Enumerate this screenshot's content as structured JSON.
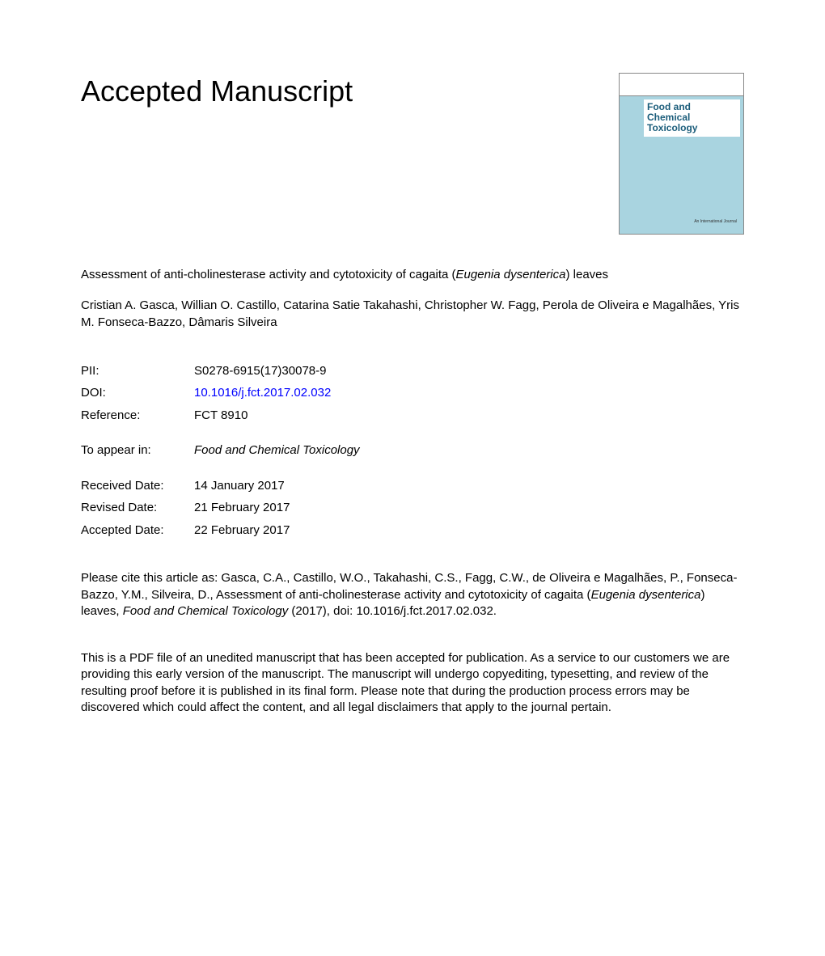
{
  "header": {
    "title": "Accepted Manuscript"
  },
  "journal_cover": {
    "journal_name_line1": "Food and",
    "journal_name_line2": "Chemical",
    "journal_name_line3": "Toxicology",
    "background_color": "#a9d4e0",
    "title_box_bg": "#ffffff",
    "title_text_color": "#1a5c7a",
    "bottom_label": "An International Journal"
  },
  "article": {
    "title_prefix": "Assessment of anti-cholinesterase activity and cytotoxicity of cagaita (",
    "title_italic": "Eugenia dysenterica",
    "title_suffix": ") leaves",
    "authors": "Cristian A. Gasca, Willian O. Castillo, Catarina Satie Takahashi, Christopher W. Fagg, Perola de Oliveira e Magalhães, Yris M. Fonseca-Bazzo, Dâmaris Silveira"
  },
  "meta": {
    "pii_label": "PII:",
    "pii_value": "S0278-6915(17)30078-9",
    "doi_label": "DOI:",
    "doi_value": "10.1016/j.fct.2017.02.032",
    "reference_label": "Reference:",
    "reference_value": "FCT 8910",
    "appear_label": "To appear in:",
    "appear_value": "Food and Chemical Toxicology",
    "received_label": "Received Date:",
    "received_value": "14 January 2017",
    "revised_label": "Revised Date:",
    "revised_value": "21 February 2017",
    "accepted_label": "Accepted Date:",
    "accepted_value": "22 February 2017"
  },
  "citation": {
    "prefix": "Please cite this article as: Gasca, C.A., Castillo, W.O., Takahashi, C.S., Fagg, C.W., de Oliveira e Magalhães, P., Fonseca-Bazzo, Y.M., Silveira, D., Assessment of anti-cholinesterase activity and cytotoxicity of cagaita (",
    "italic1": "Eugenia dysenterica",
    "middle": ") leaves, ",
    "italic2": "Food and Chemical Toxicology",
    "suffix": " (2017), doi: 10.1016/j.fct.2017.02.032."
  },
  "disclaimer": {
    "text": "This is a PDF file of an unedited manuscript that has been accepted for publication. As a service to our customers we are providing this early version of the manuscript. The manuscript will undergo copyediting, typesetting, and review of the resulting proof before it is published in its final form. Please note that during the production process errors may be discovered which could affect the content, and all legal disclaimers that apply to the journal pertain."
  }
}
